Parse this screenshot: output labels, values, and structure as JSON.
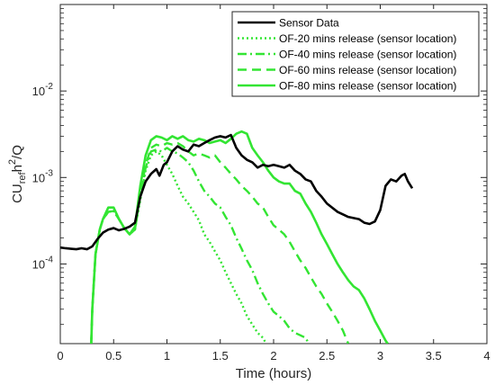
{
  "chart_data": {
    "type": "line",
    "xlabel": "Time (hours)",
    "ylabel": {
      "base": "CU",
      "sub": "ref",
      "mid": "h",
      "sup": "2",
      "tail": "/Q"
    },
    "xlim": [
      0,
      4
    ],
    "ylim": [
      1.2e-05,
      0.1
    ],
    "yscale": "log",
    "grid": false,
    "legend_position": "top-right",
    "x_ticks": [
      0,
      0.5,
      1,
      1.5,
      2,
      2.5,
      3,
      3.5,
      4
    ],
    "x_tick_labels": [
      "0",
      "0.5",
      "1",
      "1.5",
      "2",
      "2.5",
      "3",
      "3.5",
      "4"
    ],
    "y_ticks": [
      {
        "value": 0.0001,
        "base": "10",
        "exp": "-4"
      },
      {
        "value": 0.001,
        "base": "10",
        "exp": "-3"
      },
      {
        "value": 0.01,
        "base": "10",
        "exp": "-2"
      }
    ],
    "series": [
      {
        "name": "Sensor Data",
        "color": "#000000",
        "dash": "solid",
        "width": 2.6,
        "points": [
          [
            0.0,
            0.000155
          ],
          [
            0.05,
            0.000152
          ],
          [
            0.1,
            0.00015
          ],
          [
            0.15,
            0.000148
          ],
          [
            0.2,
            0.000152
          ],
          [
            0.25,
            0.000148
          ],
          [
            0.3,
            0.00016
          ],
          [
            0.35,
            0.000195
          ],
          [
            0.4,
            0.00023
          ],
          [
            0.45,
            0.00025
          ],
          [
            0.5,
            0.00026
          ],
          [
            0.55,
            0.000245
          ],
          [
            0.6,
            0.000255
          ],
          [
            0.65,
            0.00027
          ],
          [
            0.7,
            0.0003
          ],
          [
            0.75,
            0.0006
          ],
          [
            0.8,
            0.0009
          ],
          [
            0.85,
            0.0011
          ],
          [
            0.9,
            0.00125
          ],
          [
            0.93,
            0.00105
          ],
          [
            0.97,
            0.0014
          ],
          [
            1.0,
            0.0015
          ],
          [
            1.05,
            0.002
          ],
          [
            1.1,
            0.0023
          ],
          [
            1.15,
            0.0021
          ],
          [
            1.2,
            0.002
          ],
          [
            1.25,
            0.0024
          ],
          [
            1.3,
            0.0023
          ],
          [
            1.35,
            0.0025
          ],
          [
            1.4,
            0.0027
          ],
          [
            1.45,
            0.0029
          ],
          [
            1.5,
            0.003
          ],
          [
            1.55,
            0.0029
          ],
          [
            1.6,
            0.0031
          ],
          [
            1.65,
            0.0022
          ],
          [
            1.7,
            0.0018
          ],
          [
            1.75,
            0.0016
          ],
          [
            1.8,
            0.0015
          ],
          [
            1.85,
            0.0013
          ],
          [
            1.9,
            0.0014
          ],
          [
            1.95,
            0.00135
          ],
          [
            2.0,
            0.0014
          ],
          [
            2.05,
            0.00135
          ],
          [
            2.1,
            0.0013
          ],
          [
            2.15,
            0.0014
          ],
          [
            2.2,
            0.0012
          ],
          [
            2.25,
            0.0011
          ],
          [
            2.3,
            0.00095
          ],
          [
            2.35,
            0.0009
          ],
          [
            2.4,
            0.0007
          ],
          [
            2.45,
            0.0006
          ],
          [
            2.5,
            0.0005
          ],
          [
            2.6,
            0.0004
          ],
          [
            2.7,
            0.00035
          ],
          [
            2.8,
            0.00033
          ],
          [
            2.85,
            0.0003
          ],
          [
            2.9,
            0.00029
          ],
          [
            2.95,
            0.00031
          ],
          [
            3.0,
            0.00042
          ],
          [
            3.05,
            0.0008
          ],
          [
            3.1,
            0.00095
          ],
          [
            3.15,
            0.0009
          ],
          [
            3.2,
            0.00105
          ],
          [
            3.23,
            0.0011
          ],
          [
            3.26,
            0.0009
          ],
          [
            3.3,
            0.00075
          ]
        ]
      },
      {
        "name": "OF-20 mins release (sensor location)",
        "color": "#33e533",
        "dash": "dot",
        "width": 2.4,
        "points": [
          [
            0.29,
            1.2e-05
          ],
          [
            0.3,
            3e-05
          ],
          [
            0.33,
            0.00013
          ],
          [
            0.37,
            0.00025
          ],
          [
            0.4,
            0.00033
          ],
          [
            0.45,
            0.0004
          ],
          [
            0.5,
            0.00041
          ],
          [
            0.55,
            0.00033
          ],
          [
            0.6,
            0.00026
          ],
          [
            0.65,
            0.00022
          ],
          [
            0.7,
            0.00025
          ],
          [
            0.75,
            0.00055
          ],
          [
            0.8,
            0.0012
          ],
          [
            0.85,
            0.0018
          ],
          [
            0.9,
            0.002
          ],
          [
            0.95,
            0.0018
          ],
          [
            1.0,
            0.0014
          ],
          [
            1.05,
            0.0011
          ],
          [
            1.1,
            0.0008
          ],
          [
            1.15,
            0.0006
          ],
          [
            1.2,
            0.0005
          ],
          [
            1.25,
            0.0004
          ],
          [
            1.3,
            0.00032
          ],
          [
            1.35,
            0.00022
          ],
          [
            1.4,
            0.00018
          ],
          [
            1.45,
            0.00014
          ],
          [
            1.5,
            0.00011
          ],
          [
            1.55,
            8e-05
          ],
          [
            1.6,
            6e-05
          ],
          [
            1.65,
            4.5e-05
          ],
          [
            1.7,
            3.5e-05
          ],
          [
            1.75,
            2.5e-05
          ],
          [
            1.8,
            2e-05
          ],
          [
            1.85,
            1.6e-05
          ],
          [
            1.9,
            1.4e-05
          ],
          [
            1.93,
            1.2e-05
          ]
        ]
      },
      {
        "name": "OF-40 mins release (sensor location)",
        "color": "#33e533",
        "dash": "dashdot",
        "width": 2.4,
        "points": [
          [
            0.29,
            1.2e-05
          ],
          [
            0.3,
            3e-05
          ],
          [
            0.33,
            0.00013
          ],
          [
            0.37,
            0.00025
          ],
          [
            0.4,
            0.00033
          ],
          [
            0.45,
            0.0004
          ],
          [
            0.5,
            0.00041
          ],
          [
            0.55,
            0.00033
          ],
          [
            0.6,
            0.00026
          ],
          [
            0.65,
            0.00022
          ],
          [
            0.7,
            0.00025
          ],
          [
            0.75,
            0.0006
          ],
          [
            0.8,
            0.0013
          ],
          [
            0.85,
            0.002
          ],
          [
            0.9,
            0.0021
          ],
          [
            0.95,
            0.002
          ],
          [
            1.0,
            0.0022
          ],
          [
            1.05,
            0.002
          ],
          [
            1.1,
            0.0019
          ],
          [
            1.15,
            0.0017
          ],
          [
            1.2,
            0.0015
          ],
          [
            1.25,
            0.0012
          ],
          [
            1.3,
            0.0009
          ],
          [
            1.35,
            0.0007
          ],
          [
            1.4,
            0.0006
          ],
          [
            1.45,
            0.0005
          ],
          [
            1.5,
            0.00045
          ],
          [
            1.55,
            0.00035
          ],
          [
            1.6,
            0.00028
          ],
          [
            1.65,
            0.0002
          ],
          [
            1.7,
            0.00015
          ],
          [
            1.75,
            0.00011
          ],
          [
            1.8,
            8.5e-05
          ],
          [
            1.85,
            6e-05
          ],
          [
            1.9,
            4.5e-05
          ],
          [
            1.95,
            3.5e-05
          ],
          [
            2.0,
            2.8e-05
          ],
          [
            2.05,
            2.5e-05
          ],
          [
            2.1,
            2.2e-05
          ],
          [
            2.15,
            1.8e-05
          ],
          [
            2.2,
            1.6e-05
          ],
          [
            2.25,
            1.5e-05
          ],
          [
            2.3,
            1.4e-05
          ],
          [
            2.33,
            1.2e-05
          ]
        ]
      },
      {
        "name": "OF-60 mins release (sensor location)",
        "color": "#33e533",
        "dash": "dash",
        "width": 2.4,
        "points": [
          [
            0.29,
            1.2e-05
          ],
          [
            0.3,
            3e-05
          ],
          [
            0.33,
            0.00013
          ],
          [
            0.37,
            0.00025
          ],
          [
            0.4,
            0.00033
          ],
          [
            0.45,
            0.0004
          ],
          [
            0.5,
            0.00041
          ],
          [
            0.55,
            0.00033
          ],
          [
            0.6,
            0.00026
          ],
          [
            0.65,
            0.00022
          ],
          [
            0.7,
            0.00025
          ],
          [
            0.75,
            0.00065
          ],
          [
            0.8,
            0.0014
          ],
          [
            0.85,
            0.0022
          ],
          [
            0.9,
            0.0024
          ],
          [
            0.95,
            0.0023
          ],
          [
            1.0,
            0.0025
          ],
          [
            1.05,
            0.0024
          ],
          [
            1.1,
            0.0025
          ],
          [
            1.15,
            0.0023
          ],
          [
            1.2,
            0.002
          ],
          [
            1.25,
            0.0018
          ],
          [
            1.3,
            0.0019
          ],
          [
            1.35,
            0.0018
          ],
          [
            1.4,
            0.0017
          ],
          [
            1.45,
            0.0018
          ],
          [
            1.5,
            0.0015
          ],
          [
            1.55,
            0.0013
          ],
          [
            1.6,
            0.0011
          ],
          [
            1.65,
            0.00095
          ],
          [
            1.7,
            0.0008
          ],
          [
            1.75,
            0.0007
          ],
          [
            1.8,
            0.0006
          ],
          [
            1.85,
            0.0005
          ],
          [
            1.9,
            0.00045
          ],
          [
            1.95,
            0.00035
          ],
          [
            2.0,
            0.00028
          ],
          [
            2.05,
            0.00025
          ],
          [
            2.1,
            0.00022
          ],
          [
            2.15,
            0.00018
          ],
          [
            2.2,
            0.00014
          ],
          [
            2.25,
            0.00011
          ],
          [
            2.3,
            9e-05
          ],
          [
            2.35,
            7e-05
          ],
          [
            2.4,
            5.5e-05
          ],
          [
            2.45,
            4.5e-05
          ],
          [
            2.5,
            3.5e-05
          ],
          [
            2.55,
            2.8e-05
          ],
          [
            2.6,
            2.2e-05
          ],
          [
            2.65,
            1.7e-05
          ],
          [
            2.7,
            1.2e-05
          ]
        ]
      },
      {
        "name": "OF-80 mins release (sensor location)",
        "color": "#33e533",
        "dash": "solid",
        "width": 2.6,
        "points": [
          [
            0.29,
            1.2e-05
          ],
          [
            0.3,
            3e-05
          ],
          [
            0.33,
            0.00013
          ],
          [
            0.37,
            0.00025
          ],
          [
            0.4,
            0.00033
          ],
          [
            0.45,
            0.00045
          ],
          [
            0.5,
            0.00045
          ],
          [
            0.55,
            0.00033
          ],
          [
            0.6,
            0.00026
          ],
          [
            0.65,
            0.00022
          ],
          [
            0.7,
            0.00027
          ],
          [
            0.75,
            0.0008
          ],
          [
            0.8,
            0.0018
          ],
          [
            0.85,
            0.0027
          ],
          [
            0.9,
            0.003
          ],
          [
            0.95,
            0.0029
          ],
          [
            1.0,
            0.0027
          ],
          [
            1.05,
            0.003
          ],
          [
            1.1,
            0.0028
          ],
          [
            1.15,
            0.003
          ],
          [
            1.2,
            0.0027
          ],
          [
            1.25,
            0.0026
          ],
          [
            1.3,
            0.0028
          ],
          [
            1.35,
            0.0027
          ],
          [
            1.4,
            0.0025
          ],
          [
            1.45,
            0.0026
          ],
          [
            1.5,
            0.0027
          ],
          [
            1.55,
            0.0025
          ],
          [
            1.6,
            0.0028
          ],
          [
            1.65,
            0.0032
          ],
          [
            1.7,
            0.0034
          ],
          [
            1.75,
            0.0032
          ],
          [
            1.8,
            0.0022
          ],
          [
            1.85,
            0.0018
          ],
          [
            1.9,
            0.0015
          ],
          [
            1.95,
            0.0012
          ],
          [
            2.0,
            0.001
          ],
          [
            2.05,
            0.0009
          ],
          [
            2.1,
            0.00085
          ],
          [
            2.15,
            0.00085
          ],
          [
            2.2,
            0.0007
          ],
          [
            2.25,
            0.00065
          ],
          [
            2.3,
            0.0005
          ],
          [
            2.35,
            0.0004
          ],
          [
            2.4,
            0.0003
          ],
          [
            2.45,
            0.00022
          ],
          [
            2.5,
            0.00017
          ],
          [
            2.55,
            0.00013
          ],
          [
            2.6,
            0.0001
          ],
          [
            2.65,
            8e-05
          ],
          [
            2.7,
            6.5e-05
          ],
          [
            2.75,
            5.5e-05
          ],
          [
            2.8,
            5e-05
          ],
          [
            2.85,
            4e-05
          ],
          [
            2.9,
            3e-05
          ],
          [
            2.95,
            2.2e-05
          ],
          [
            3.0,
            1.7e-05
          ],
          [
            3.05,
            1.3e-05
          ],
          [
            3.07,
            1.2e-05
          ]
        ]
      }
    ]
  }
}
